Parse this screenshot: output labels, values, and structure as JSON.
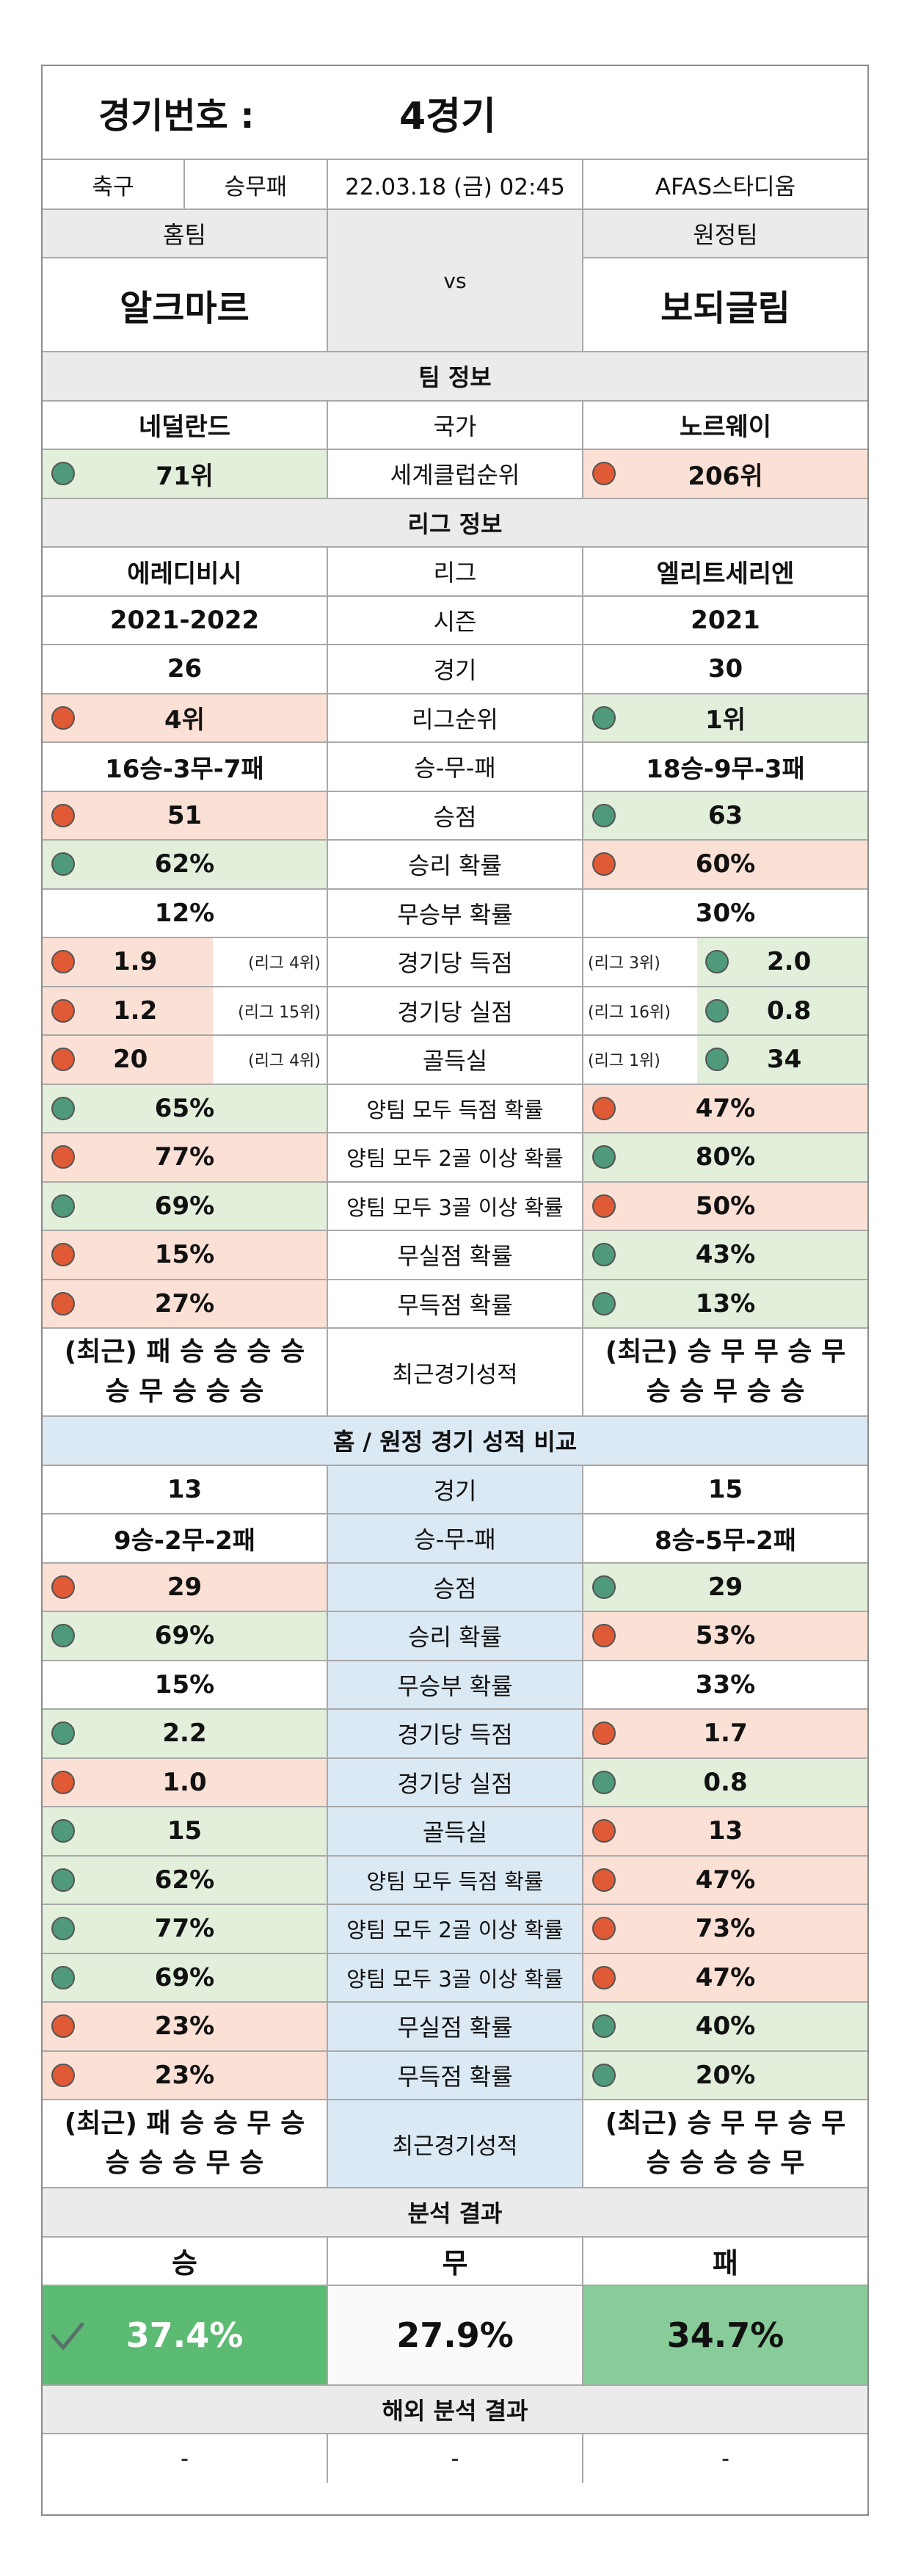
{
  "header": {
    "label": "경기번호 :",
    "match_no": "4경기"
  },
  "meta": {
    "sport": "축구",
    "type": "승무패",
    "datetime": "22.03.18 (금) 02:45",
    "venue": "AFAS스타디움"
  },
  "teams": {
    "home_label": "홈팀",
    "away_label": "원정팀",
    "vs": "vs",
    "home": "알크마르",
    "away": "보되글림"
  },
  "sections": {
    "team_info": "팀 정보",
    "league_info": "리그 정보",
    "home_away": "홈 / 원정 경기 성적 비교",
    "analysis": "분석 결과",
    "overseas": "해외 분석 결과"
  },
  "team_info": [
    {
      "label": "국가",
      "home": "네덜란드",
      "away": "노르웨이"
    },
    {
      "label": "세계클럽순위",
      "home": "71위",
      "away": "206위"
    }
  ],
  "league": [
    {
      "label": "리그",
      "home": "에레디비시",
      "away": "엘리트세리엔"
    },
    {
      "label": "시즌",
      "home": "2021-2022",
      "away": "2021"
    },
    {
      "label": "경기",
      "home": "26",
      "away": "30"
    },
    {
      "label": "리그순위",
      "home": "4위",
      "away": "1위"
    },
    {
      "label": "승-무-패",
      "home": "16승-3무-7패",
      "away": "18승-9무-3패"
    },
    {
      "label": "승점",
      "home": "51",
      "away": "63"
    },
    {
      "label": "승리 확률",
      "home": "62%",
      "away": "60%"
    },
    {
      "label": "무승부 확률",
      "home": "12%",
      "away": "30%"
    },
    {
      "label": "경기당 득점",
      "home": "1.9",
      "away": "2.0",
      "home_rank": "(리그 4위)",
      "away_rank": "(리그 3위)"
    },
    {
      "label": "경기당 실점",
      "home": "1.2",
      "away": "0.8",
      "home_rank": "(리그 15위)",
      "away_rank": "(리그 16위)"
    },
    {
      "label": "골득실",
      "home": "20",
      "away": "34",
      "home_rank": "(리그 4위)",
      "away_rank": "(리그 1위)"
    },
    {
      "label": "양팀 모두 득점 확률",
      "home": "65%",
      "away": "47%"
    },
    {
      "label": "양팀 모두 2골 이상 확률",
      "home": "77%",
      "away": "80%"
    },
    {
      "label": "양팀 모두 3골 이상 확률",
      "home": "69%",
      "away": "50%"
    },
    {
      "label": "무실점 확률",
      "home": "15%",
      "away": "43%"
    },
    {
      "label": "무득점 확률",
      "home": "27%",
      "away": "13%"
    }
  ],
  "recent": {
    "label": "최근경기성적",
    "home_1": "(최근) 패 승 승 승 승",
    "home_2": "승 무 승 승 승",
    "away_1": "(최근) 승 무 무 승 무",
    "away_2": "승 승 무 승 승"
  },
  "home_away": [
    {
      "label": "경기",
      "home": "13",
      "away": "15"
    },
    {
      "label": "승-무-패",
      "home": "9승-2무-2패",
      "away": "8승-5무-2패"
    },
    {
      "label": "승점",
      "home": "29",
      "away": "29"
    },
    {
      "label": "승리 확률",
      "home": "69%",
      "away": "53%"
    },
    {
      "label": "무승부 확률",
      "home": "15%",
      "away": "33%"
    },
    {
      "label": "경기당 득점",
      "home": "2.2",
      "away": "1.7"
    },
    {
      "label": "경기당 실점",
      "home": "1.0",
      "away": "0.8"
    },
    {
      "label": "골득실",
      "home": "15",
      "away": "13"
    },
    {
      "label": "양팀 모두 득점 확률",
      "home": "62%",
      "away": "47%"
    },
    {
      "label": "양팀 모두 2골 이상 확률",
      "home": "77%",
      "away": "73%"
    },
    {
      "label": "양팀 모두 3골 이상 확률",
      "home": "69%",
      "away": "47%"
    },
    {
      "label": "무실점 확률",
      "home": "23%",
      "away": "40%"
    },
    {
      "label": "무득점 확률",
      "home": "23%",
      "away": "20%"
    }
  ],
  "recent2": {
    "label": "최근경기성적",
    "home_1": "(최근) 패 승 승 무 승",
    "home_2": "승 승 승 무 승",
    "away_1": "(최근) 승 무 무 승 무",
    "away_2": "승 승 승 승 무"
  },
  "analysis": {
    "win_label": "승",
    "draw_label": "무",
    "loss_label": "패",
    "win": "37.4%",
    "draw": "27.9%",
    "loss": "34.7%"
  },
  "overseas": {
    "win": "-",
    "draw": "-",
    "loss": "-"
  },
  "colors": {
    "green_dot": "#4e9a7a",
    "red_dot": "#e05a35",
    "green_bg": "#e1efdb",
    "red_bg": "#fbe0d5",
    "win_bar": "#5cbb73",
    "loss_bar": "#88cc9a",
    "blue_header": "#dbe9f4"
  }
}
